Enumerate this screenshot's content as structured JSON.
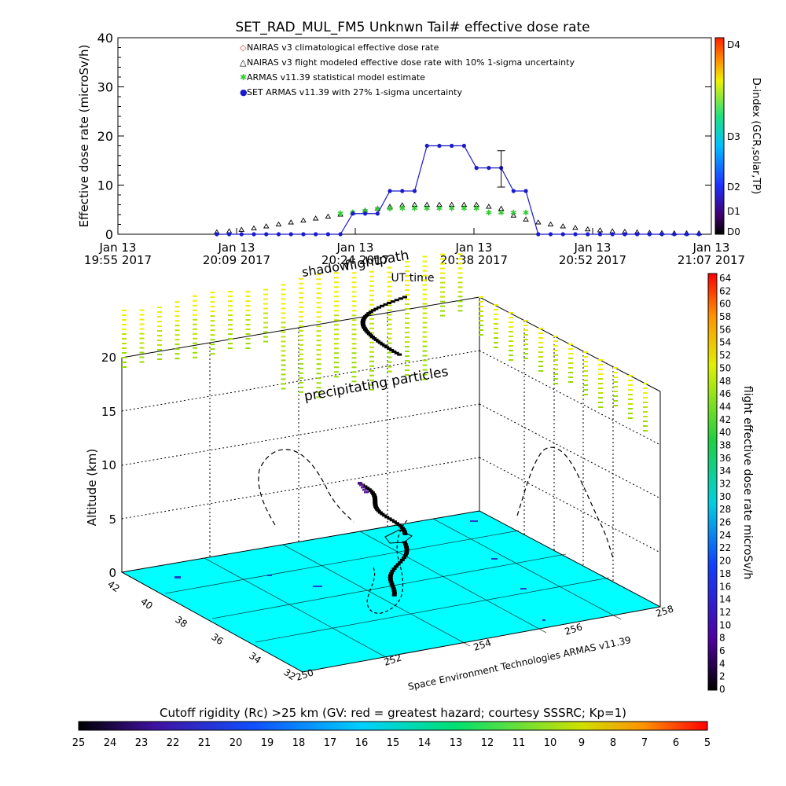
{
  "top_chart": {
    "title": "SET_RAD_MUL_FM5 Unknwn Tail#  effective dose rate",
    "ylabel": "Effective dose rate (microSv/h)",
    "xlabel": "UT time",
    "ylim": [
      0,
      40
    ],
    "y_ticks": [
      "0",
      "10",
      "20",
      "30",
      "40"
    ],
    "x_ticks": [
      {
        "l1": "Jan 13",
        "l2": "19:55 2017"
      },
      {
        "l1": "Jan 13",
        "l2": "20:09 2017"
      },
      {
        "l1": "Jan 13",
        "l2": "20:24 2017"
      },
      {
        "l1": "Jan 13",
        "l2": "20:38 2017"
      },
      {
        "l1": "Jan 13",
        "l2": "20:52 2017"
      },
      {
        "l1": "Jan 13",
        "l2": "21:07 2017"
      }
    ],
    "legend": [
      {
        "symbol": "◇",
        "color": "#d04040",
        "label": "NAIRAS v3 climatological effective dose rate"
      },
      {
        "symbol": "△",
        "color": "#000000",
        "label": "NAIRAS v3 flight modeled effective dose rate with 10% 1-sigma uncertainty"
      },
      {
        "symbol": "✱",
        "color": "#33cc33",
        "label": "ARMAS v11.39 statistical model estimate"
      },
      {
        "symbol": "●",
        "color": "#1a1acc",
        "label": "SET ARMAS v11.39 with 27% 1-sigma uncertainty"
      }
    ],
    "dindex": {
      "label": "D-index (GCR,solar,TP)",
      "ticks": [
        "D4",
        "D3",
        "D2",
        "D1",
        "D0"
      ]
    }
  },
  "chart_data": [
    {
      "type": "line",
      "title": "SET_RAD_MUL_FM5 Unknwn Tail#  effective dose rate",
      "xlabel": "UT time",
      "ylabel": "Effective dose rate (microSv/h)",
      "ylim": [
        0,
        40
      ],
      "x_unit": "minutes after 19:55 UT, Jan 13 2017",
      "series": [
        {
          "name": "SET ARMAS v11.39 with 27% 1-sigma uncertainty",
          "x": [
            12,
            13.5,
            15,
            16.5,
            18,
            19.5,
            21,
            22.5,
            24,
            25.5,
            27,
            28.5,
            30,
            31.5,
            33,
            34.5,
            36,
            37.5,
            39,
            40.5,
            42,
            43.5,
            45,
            46.5,
            48,
            49.5,
            51,
            52.5,
            54,
            55.5,
            57,
            58.5,
            60,
            61.5,
            63,
            64.5,
            66,
            67.5,
            69,
            70.5
          ],
          "values": [
            0,
            0,
            0,
            0,
            0,
            0,
            0,
            0,
            0,
            0,
            0,
            4.2,
            4.2,
            4.2,
            8.8,
            8.8,
            8.8,
            18,
            18,
            18,
            18,
            13.5,
            13.5,
            13.5,
            8.8,
            8.8,
            0,
            0,
            0,
            0,
            0,
            0,
            0,
            0,
            0,
            0,
            0,
            0,
            0,
            0
          ]
        },
        {
          "name": "NAIRAS v3 flight modeled effective dose rate with 10% 1-sigma uncertainty",
          "x": [
            12,
            13.5,
            15,
            16.5,
            18,
            19.5,
            21,
            22.5,
            24,
            25.5,
            27,
            28.5,
            30,
            31.5,
            33,
            34.5,
            36,
            37.5,
            39,
            40.5,
            42,
            43.5,
            45,
            46.5,
            48,
            49.5,
            51,
            52.5,
            54,
            55.5,
            57,
            58.5,
            60,
            61.5,
            63,
            64.5,
            66,
            67.5,
            69,
            70.5
          ],
          "values": [
            0.4,
            0.6,
            0.9,
            1.2,
            1.6,
            2.0,
            2.4,
            2.8,
            3.2,
            3.6,
            4.0,
            4.4,
            4.8,
            5.2,
            5.6,
            5.9,
            6.0,
            6.0,
            6.0,
            6.0,
            6.0,
            6.0,
            5.6,
            5.2,
            3.8,
            3.0,
            2.4,
            2.0,
            1.6,
            1.3,
            1.0,
            0.8,
            0.6,
            0.5,
            0.4,
            0.3,
            0.25,
            0.2,
            0.2,
            0.2
          ]
        },
        {
          "name": "ARMAS v11.39 statistical model estimate",
          "x": [
            27,
            28.5,
            30,
            31.5,
            33,
            34.5,
            36,
            37.5,
            39,
            40.5,
            42,
            43.5,
            45,
            46.5,
            48,
            49.5
          ],
          "values": [
            4.3,
            4.5,
            4.8,
            5.2,
            5.3,
            5.4,
            5.4,
            5.4,
            5.4,
            5.4,
            5.4,
            5.4,
            4.5,
            4.5,
            4.5,
            4.5
          ]
        }
      ],
      "error_bar": {
        "x": 46.5,
        "low": 9.6,
        "high": 17.0
      }
    },
    {
      "type": "scatter",
      "title": "",
      "zlabel": "Altitude (km)",
      "zlim": [
        0,
        20
      ],
      "z_ticks": [
        "0",
        "5",
        "10",
        "15",
        "20"
      ],
      "latitude_ticks": [
        "42",
        "40",
        "38",
        "36",
        "34",
        "32"
      ],
      "longitude_ticks": [
        "250",
        "252",
        "254",
        "256",
        "258"
      ],
      "annotations": [
        "flightpath",
        "shadow",
        "precipitating particles"
      ]
    }
  ],
  "scene": {
    "annotations": {
      "flightpath": "flightpath",
      "shadow": "shadow",
      "precipitating": "precipitating particles"
    },
    "altitude_label": "Altitude (km)",
    "credit": "Space Environment Technologies ARMAS v11.39",
    "dose_bar": {
      "label": "flight effective dose rate microSv/h",
      "ticks": [
        "64",
        "62",
        "60",
        "58",
        "56",
        "54",
        "52",
        "50",
        "48",
        "46",
        "44",
        "42",
        "40",
        "38",
        "36",
        "34",
        "32",
        "30",
        "28",
        "26",
        "24",
        "22",
        "20",
        "18",
        "16",
        "14",
        "12",
        "10",
        "8",
        "6",
        "4",
        "2",
        "0"
      ]
    }
  },
  "cutoff": {
    "title": "Cutoff rigidity (Rc) >25 km (GV: red = greatest hazard; courtesy SSSRC; Kp=1)",
    "ticks": [
      "25",
      "24",
      "23",
      "22",
      "21",
      "20",
      "19",
      "18",
      "17",
      "16",
      "15",
      "14",
      "13",
      "12",
      "11",
      "10",
      "9",
      "8",
      "7",
      "6",
      "5"
    ]
  },
  "colors": {
    "armas": "#1a1acc",
    "model": "#33cc33",
    "floor": "#00ffff",
    "particles_low": "#99dd00",
    "particles_high": "#eeee00"
  }
}
